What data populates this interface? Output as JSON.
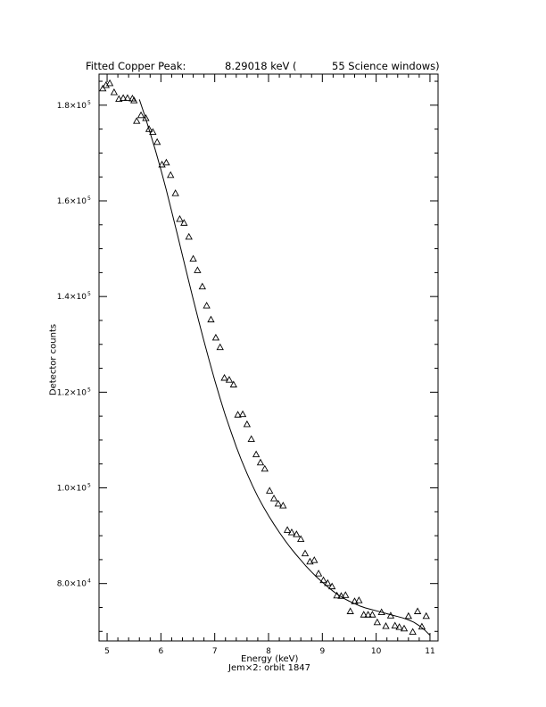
{
  "title": {
    "left": "Fitted Copper Peak:",
    "value": "8.29018 keV (",
    "right": "55 Science windows)"
  },
  "subtitle": "Jem×2: orbit 1847",
  "chart_data": {
    "type": "scatter",
    "xlabel": "Energy (keV)",
    "ylabel": "Detector counts",
    "xlim": [
      4.85,
      11.15
    ],
    "ylim": [
      68000,
      186500
    ],
    "grid": false,
    "x_ticks": [
      5,
      6,
      7,
      8,
      9,
      10,
      11
    ],
    "y_ticks": [
      {
        "value": 80000,
        "mantissa": "8.0×10",
        "exp": "4"
      },
      {
        "value": 100000,
        "mantissa": "1.0×10",
        "exp": "5"
      },
      {
        "value": 120000,
        "mantissa": "1.2×10",
        "exp": "5"
      },
      {
        "value": 140000,
        "mantissa": "1.4×10",
        "exp": "5"
      },
      {
        "value": 160000,
        "mantissa": "1.6×10",
        "exp": "5"
      },
      {
        "value": 180000,
        "mantissa": "1.8×10",
        "exp": "5"
      }
    ],
    "series": [
      {
        "marker": "triangle",
        "x": [
          4.92,
          4.98,
          5.05,
          5.13,
          5.22,
          5.3,
          5.38,
          5.47,
          5.5,
          5.55,
          5.63,
          5.72,
          5.78,
          5.85,
          5.93,
          6.02,
          6.1,
          6.18,
          6.27,
          6.35,
          6.43,
          6.52,
          6.6,
          6.68,
          6.77,
          6.85,
          6.93,
          7.02,
          7.1,
          7.18,
          7.27,
          7.35,
          7.43,
          7.52,
          7.6,
          7.68,
          7.77,
          7.85,
          7.93,
          8.02,
          8.1,
          8.18,
          8.27,
          8.35,
          8.43,
          8.52,
          8.6,
          8.68,
          8.77,
          8.85,
          8.93,
          9.02,
          9.1,
          9.18,
          9.27,
          9.35,
          9.43,
          9.52,
          9.6,
          9.68,
          9.77,
          9.85,
          9.93,
          10.02,
          10.1,
          10.18,
          10.27,
          10.35,
          10.43,
          10.52,
          10.6,
          10.68,
          10.77,
          10.85,
          10.93
        ],
        "y": [
          183500,
          184200,
          184600,
          182700,
          181300,
          181500,
          181500,
          181400,
          181000,
          176700,
          177900,
          177300,
          175000,
          174400,
          172300,
          167600,
          168000,
          165400,
          161600,
          156200,
          155400,
          152500,
          147900,
          145500,
          142100,
          138100,
          135200,
          131400,
          129400,
          123000,
          122600,
          121600,
          115300,
          115400,
          113300,
          110200,
          107000,
          105300,
          104000,
          99400,
          97800,
          96700,
          96300,
          91200,
          90700,
          90300,
          89300,
          86300,
          84600,
          84900,
          82100,
          80700,
          80100,
          79400,
          77500,
          77400,
          77600,
          74200,
          76300,
          76500,
          73500,
          73500,
          73500,
          71900,
          74000,
          71100,
          73300,
          71200,
          70900,
          70600,
          73200,
          69900,
          74200,
          71000,
          73200
        ]
      },
      {
        "name": "",
        "type": "line",
        "x": [
          5.6,
          5.7,
          5.8,
          5.9,
          6.0,
          6.1,
          6.2,
          6.3,
          6.4,
          6.5,
          6.6,
          6.7,
          6.8,
          6.9,
          7.0,
          7.1,
          7.2,
          7.3,
          7.4,
          7.5,
          7.6,
          7.7,
          7.8,
          7.9,
          8.0,
          8.1,
          8.2,
          8.3,
          8.4,
          8.5,
          8.6,
          8.7,
          8.8,
          8.9,
          9.0,
          9.1,
          9.2,
          9.3,
          9.4,
          9.5,
          9.6,
          9.7,
          9.8,
          9.9,
          10.0,
          10.1,
          10.2,
          10.3,
          10.4,
          10.5,
          10.6,
          10.7,
          10.8,
          10.9,
          11.0
        ],
        "y": [
          181200,
          177800,
          174200,
          170500,
          166500,
          162300,
          157800,
          153200,
          148600,
          144000,
          139400,
          135000,
          130700,
          126500,
          122500,
          118700,
          115100,
          111800,
          108600,
          105700,
          103000,
          100500,
          98200,
          96100,
          94200,
          92400,
          90700,
          89100,
          87600,
          86200,
          84900,
          83600,
          82400,
          81300,
          80300,
          79300,
          78400,
          77600,
          76900,
          76300,
          75800,
          75300,
          74900,
          74600,
          74300,
          74000,
          73700,
          73400,
          73100,
          72800,
          72400,
          71900,
          71200,
          70300,
          69200
        ]
      }
    ]
  }
}
